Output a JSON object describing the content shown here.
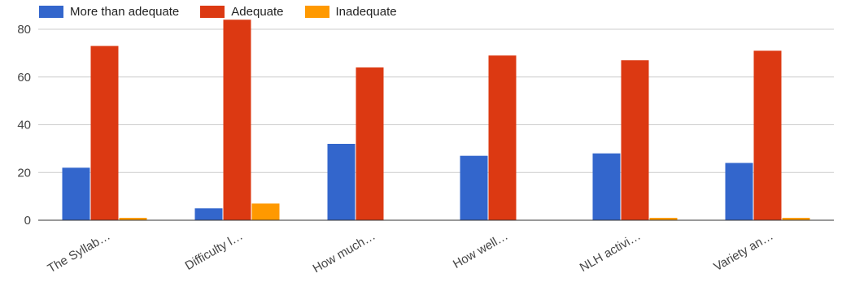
{
  "chart_data": {
    "type": "bar",
    "title": "",
    "xlabel": "",
    "ylabel": "",
    "ylim": [
      0,
      80
    ],
    "yticks": [
      0,
      20,
      40,
      60,
      80
    ],
    "grid": true,
    "legend_position": "top-left",
    "categories": [
      "The Syllab…",
      "Difficulty l…",
      "How much…",
      "How well…",
      "NLH activi…",
      "Variety an…"
    ],
    "series": [
      {
        "name": "More than adequate",
        "color": "#3366cc",
        "values": [
          22,
          5,
          32,
          27,
          28,
          24
        ]
      },
      {
        "name": "Adequate",
        "color": "#dc3912",
        "values": [
          73,
          84,
          64,
          69,
          67,
          71
        ]
      },
      {
        "name": "Inadequate",
        "color": "#ff9900",
        "values": [
          1,
          7,
          0,
          0,
          1,
          1
        ]
      }
    ]
  }
}
